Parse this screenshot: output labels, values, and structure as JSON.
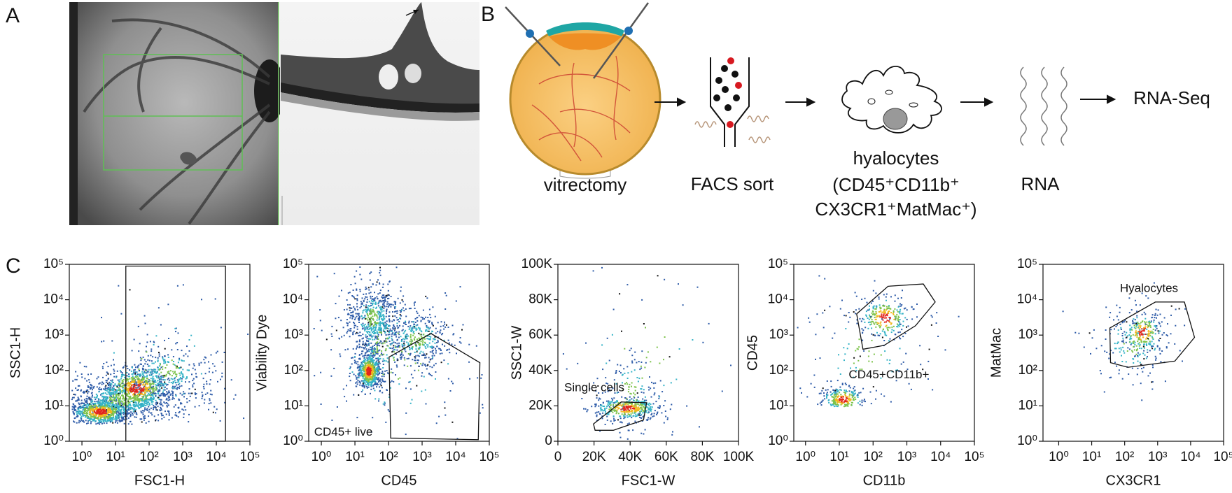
{
  "panels": {
    "a": {
      "label": "A"
    },
    "b": {
      "label": "B",
      "steps": [
        {
          "label": "vitrectomy"
        },
        {
          "label": "FACS sort"
        },
        {
          "lines": [
            "hyalocytes",
            "(CD45⁺CD11b⁺",
            "CX3CR1⁺MatMac⁺)"
          ]
        },
        {
          "label": "RNA"
        },
        {
          "label": "RNA-Seq"
        }
      ]
    },
    "c": {
      "label": "C",
      "plots": [
        {
          "x_label": "FSC1-H",
          "y_label": "SSC1-H",
          "xticks": [
            "10⁰",
            "10¹",
            "10²",
            "10³",
            "10⁴",
            "10⁵"
          ],
          "yticks": [
            "10⁰",
            "10¹",
            "10²",
            "10³",
            "10⁴",
            "10⁵"
          ]
        },
        {
          "x_label": "CD45",
          "y_label": "Viability Dye",
          "gate_label": "CD45+ live",
          "xticks": [
            "10⁰",
            "10¹",
            "10²",
            "10³",
            "10⁴",
            "10⁵"
          ],
          "yticks": [
            "10⁰",
            "10¹",
            "10²",
            "10³",
            "10⁴",
            "10⁵"
          ]
        },
        {
          "x_label": "FSC1-W",
          "y_label": "SSC1-W",
          "gate_label": "Single cells",
          "xticks": [
            "0",
            "20K",
            "40K",
            "60K",
            "80K",
            "100K"
          ],
          "yticks": [
            "0",
            "20K",
            "40K",
            "60K",
            "80K",
            "100K"
          ]
        },
        {
          "x_label": "CD11b",
          "y_label": "CD45",
          "gate_label": "CD45+CD11b+",
          "xticks": [
            "10⁰",
            "10¹",
            "10²",
            "10³",
            "10⁴",
            "10⁵"
          ],
          "yticks": [
            "10⁰",
            "10¹",
            "10²",
            "10³",
            "10⁴",
            "10⁵"
          ]
        },
        {
          "x_label": "CX3CR1",
          "y_label": "MatMac",
          "gate_label": "Hyalocytes",
          "xticks": [
            "10⁰",
            "10¹",
            "10²",
            "10³",
            "10⁴",
            "10⁵"
          ],
          "yticks": [
            "10⁰",
            "10¹",
            "10²",
            "10³",
            "10⁴",
            "10⁵"
          ]
        }
      ]
    }
  }
}
